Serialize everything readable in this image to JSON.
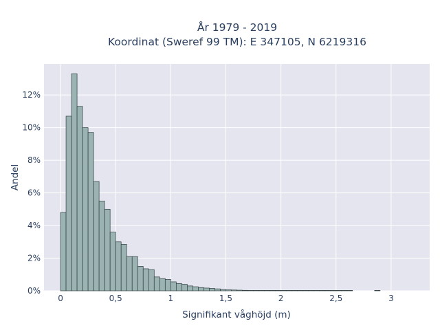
{
  "chart_data": {
    "type": "bar",
    "title": "År 1979 - 2019",
    "subtitle": "Koordinat (Sweref 99 TM): E 347105, N 6219316",
    "xlabel": "Signifikant våghöjd (m)",
    "ylabel": "Andel",
    "xlim": [
      -0.15,
      3.35
    ],
    "ylim": [
      0,
      13.9
    ],
    "bin_width": 0.05,
    "x_ticks": [
      0,
      0.5,
      1,
      1.5,
      2,
      2.5,
      3
    ],
    "x_tick_labels": [
      "0",
      "0,5",
      "1",
      "1,5",
      "2",
      "2,5",
      "3"
    ],
    "y_ticks": [
      0,
      2,
      4,
      6,
      8,
      10,
      12
    ],
    "y_tick_labels": [
      "0%",
      "2%",
      "4%",
      "6%",
      "8%",
      "10%",
      "12%"
    ],
    "grid": true,
    "legend": "none",
    "bar_color": "#9bb3b3",
    "bar_edge_color": "#2f3f3f",
    "plot_background": "#e5e5f0",
    "bins_start": [
      0,
      0.05,
      0.1,
      0.15,
      0.2,
      0.25,
      0.3,
      0.35,
      0.4,
      0.45,
      0.5,
      0.55,
      0.6,
      0.65,
      0.7,
      0.75,
      0.8,
      0.85,
      0.9,
      0.95,
      1.0,
      1.05,
      1.1,
      1.15,
      1.2,
      1.25,
      1.3,
      1.35,
      1.4,
      1.45,
      1.5,
      1.55,
      1.6,
      1.65,
      1.7,
      1.75,
      1.8,
      1.85,
      1.9,
      1.95,
      2.0,
      2.05,
      2.1,
      2.15,
      2.2,
      2.25,
      2.3,
      2.35,
      2.4,
      2.45,
      2.5,
      2.55,
      2.6,
      2.65,
      2.7,
      2.75,
      2.8,
      2.85
    ],
    "values": [
      4.8,
      10.7,
      13.3,
      11.3,
      10.0,
      9.7,
      6.7,
      5.5,
      5.0,
      3.6,
      3.0,
      2.85,
      2.1,
      2.1,
      1.5,
      1.35,
      1.3,
      0.85,
      0.75,
      0.7,
      0.55,
      0.45,
      0.4,
      0.3,
      0.25,
      0.2,
      0.17,
      0.15,
      0.12,
      0.08,
      0.06,
      0.05,
      0.04,
      0.03,
      0.025,
      0.02,
      0.015,
      0.012,
      0.01,
      0.008,
      0.006,
      0.005,
      0.004,
      0.004,
      0.003,
      0.003,
      0.002,
      0.002,
      0.002,
      0.001,
      0.001,
      0.001,
      0.001,
      0.0,
      0.0,
      0.0,
      0.0,
      0.001
    ]
  }
}
